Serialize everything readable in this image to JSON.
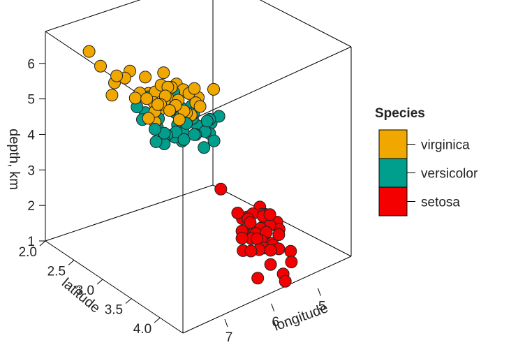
{
  "chart_data": {
    "type": "scatter",
    "subtype": "3d-scatter",
    "xlabel": "longitude",
    "ylabel": "latitude",
    "zlabel": "depth, km",
    "x_ticks": [
      "5",
      "6",
      "7"
    ],
    "y_ticks": [
      "2.0",
      "2.5",
      "3.0",
      "3.5",
      "4.0"
    ],
    "z_ticks": [
      "1",
      "2",
      "3",
      "4",
      "5",
      "6"
    ],
    "legend_title": "Species",
    "legend_position": "right",
    "series": [
      {
        "name": "virginica",
        "color": "#F0A800",
        "points": [
          [
            7.9,
            3.8,
            6.4
          ],
          [
            7.7,
            3.0,
            6.1
          ],
          [
            7.7,
            2.6,
            6.9
          ],
          [
            7.7,
            2.8,
            6.7
          ],
          [
            7.7,
            3.8,
            6.7
          ],
          [
            7.6,
            3.0,
            6.6
          ],
          [
            7.4,
            2.8,
            6.1
          ],
          [
            7.3,
            2.9,
            6.3
          ],
          [
            7.2,
            3.6,
            6.1
          ],
          [
            7.2,
            3.2,
            6.0
          ],
          [
            7.2,
            3.0,
            5.8
          ],
          [
            7.1,
            3.0,
            5.9
          ],
          [
            6.9,
            3.1,
            5.4
          ],
          [
            6.9,
            3.2,
            5.7
          ],
          [
            6.9,
            3.1,
            5.1
          ],
          [
            6.8,
            3.0,
            5.5
          ],
          [
            6.8,
            3.2,
            5.9
          ],
          [
            6.7,
            3.3,
            5.7
          ],
          [
            6.7,
            3.0,
            5.2
          ],
          [
            6.7,
            2.5,
            5.8
          ],
          [
            6.7,
            3.1,
            5.6
          ],
          [
            6.5,
            3.0,
            5.8
          ],
          [
            6.5,
            3.2,
            5.1
          ],
          [
            6.5,
            3.0,
            5.5
          ],
          [
            6.4,
            2.7,
            5.3
          ],
          [
            6.4,
            3.2,
            5.3
          ],
          [
            6.4,
            2.8,
            5.6
          ],
          [
            6.3,
            3.3,
            6.0
          ],
          [
            6.3,
            2.9,
            5.6
          ],
          [
            6.3,
            2.5,
            5.0
          ],
          [
            6.3,
            3.4,
            5.6
          ],
          [
            6.2,
            2.8,
            4.8
          ],
          [
            6.1,
            3.0,
            4.9
          ],
          [
            6.0,
            2.2,
            5.0
          ],
          [
            5.8,
            2.7,
            5.1
          ],
          [
            5.8,
            2.8,
            5.1
          ],
          [
            5.7,
            2.5,
            5.0
          ],
          [
            5.6,
            2.8,
            4.9
          ],
          [
            4.9,
            2.5,
            4.5
          ],
          [
            6.4,
            3.1,
            5.5
          ],
          [
            6.1,
            2.6,
            5.6
          ],
          [
            6.0,
            3.0,
            4.8
          ],
          [
            6.9,
            3.1,
            5.4
          ],
          [
            5.9,
            3.0,
            5.1
          ]
        ]
      },
      {
        "name": "versicolor",
        "color": "#009E8C",
        "points": [
          [
            7.0,
            3.2,
            4.7
          ],
          [
            6.4,
            3.2,
            4.5
          ],
          [
            6.9,
            3.1,
            4.9
          ],
          [
            5.5,
            2.3,
            4.0
          ],
          [
            6.5,
            2.8,
            4.6
          ],
          [
            5.7,
            2.8,
            4.5
          ],
          [
            6.3,
            3.3,
            4.7
          ],
          [
            4.9,
            2.4,
            3.3
          ],
          [
            6.6,
            2.9,
            4.6
          ],
          [
            5.2,
            2.7,
            3.9
          ],
          [
            5.0,
            2.0,
            3.5
          ],
          [
            5.9,
            3.0,
            4.2
          ],
          [
            6.0,
            2.2,
            4.0
          ],
          [
            6.1,
            2.9,
            4.7
          ],
          [
            5.6,
            2.9,
            3.6
          ],
          [
            6.7,
            3.1,
            4.4
          ],
          [
            5.6,
            3.0,
            4.5
          ],
          [
            5.8,
            2.7,
            4.1
          ],
          [
            6.2,
            2.2,
            4.5
          ],
          [
            5.6,
            2.5,
            3.9
          ],
          [
            5.9,
            3.2,
            4.8
          ],
          [
            6.1,
            2.8,
            4.0
          ],
          [
            6.3,
            2.5,
            4.9
          ],
          [
            6.1,
            2.8,
            4.7
          ],
          [
            6.4,
            2.9,
            4.3
          ],
          [
            6.6,
            3.0,
            4.4
          ],
          [
            6.8,
            2.8,
            4.8
          ],
          [
            6.7,
            3.0,
            5.0
          ],
          [
            6.0,
            2.9,
            4.5
          ],
          [
            5.7,
            2.6,
            3.5
          ],
          [
            5.5,
            2.4,
            3.8
          ],
          [
            5.8,
            2.7,
            3.9
          ],
          [
            6.0,
            2.7,
            5.1
          ],
          [
            5.4,
            3.0,
            4.5
          ],
          [
            6.0,
            3.4,
            4.5
          ],
          [
            6.7,
            3.1,
            4.7
          ],
          [
            6.3,
            2.3,
            4.4
          ],
          [
            5.6,
            3.0,
            4.1
          ],
          [
            5.5,
            2.6,
            4.4
          ],
          [
            6.1,
            3.0,
            4.6
          ],
          [
            5.8,
            2.6,
            4.0
          ],
          [
            5.0,
            2.3,
            3.3
          ],
          [
            5.6,
            2.7,
            4.2
          ],
          [
            5.7,
            3.0,
            4.2
          ],
          [
            6.2,
            2.9,
            4.3
          ]
        ]
      },
      {
        "name": "setosa",
        "color": "#F50000",
        "points": [
          [
            5.1,
            3.5,
            1.4
          ],
          [
            4.9,
            3.0,
            1.4
          ],
          [
            4.7,
            3.2,
            1.3
          ],
          [
            4.6,
            3.1,
            1.5
          ],
          [
            5.0,
            3.6,
            1.4
          ],
          [
            5.4,
            3.9,
            1.7
          ],
          [
            4.6,
            3.4,
            1.4
          ],
          [
            5.0,
            3.4,
            1.5
          ],
          [
            4.4,
            2.9,
            1.4
          ],
          [
            4.9,
            3.1,
            1.5
          ],
          [
            5.4,
            3.7,
            1.5
          ],
          [
            4.8,
            3.4,
            1.6
          ],
          [
            4.8,
            3.0,
            1.4
          ],
          [
            4.3,
            3.0,
            1.1
          ],
          [
            5.8,
            4.0,
            1.2
          ],
          [
            5.7,
            4.4,
            1.5
          ],
          [
            5.4,
            3.9,
            1.3
          ],
          [
            5.1,
            3.5,
            1.4
          ],
          [
            5.7,
            3.8,
            1.7
          ],
          [
            5.1,
            3.8,
            1.5
          ],
          [
            5.4,
            3.4,
            1.7
          ],
          [
            5.1,
            3.7,
            1.5
          ],
          [
            4.6,
            3.6,
            1.0
          ],
          [
            5.1,
            3.3,
            1.7
          ],
          [
            4.8,
            3.4,
            1.9
          ],
          [
            5.0,
            3.0,
            1.6
          ],
          [
            5.0,
            3.4,
            1.6
          ],
          [
            5.2,
            3.5,
            1.5
          ],
          [
            5.2,
            3.4,
            1.4
          ],
          [
            4.7,
            3.2,
            1.6
          ],
          [
            4.8,
            3.1,
            1.6
          ],
          [
            5.4,
            3.4,
            1.5
          ],
          [
            5.2,
            4.1,
            1.5
          ],
          [
            5.5,
            4.2,
            1.4
          ],
          [
            5.0,
            3.2,
            1.2
          ],
          [
            5.5,
            3.5,
            1.3
          ],
          [
            4.4,
            3.0,
            1.3
          ],
          [
            5.1,
            3.4,
            1.5
          ],
          [
            5.0,
            3.5,
            1.3
          ],
          [
            4.5,
            2.3,
            1.3
          ],
          [
            4.4,
            3.2,
            1.3
          ],
          [
            5.0,
            3.5,
            1.6
          ],
          [
            5.1,
            3.8,
            1.9
          ],
          [
            5.3,
            3.7,
            1.5
          ],
          [
            5.0,
            3.3,
            1.4
          ]
        ]
      }
    ]
  }
}
